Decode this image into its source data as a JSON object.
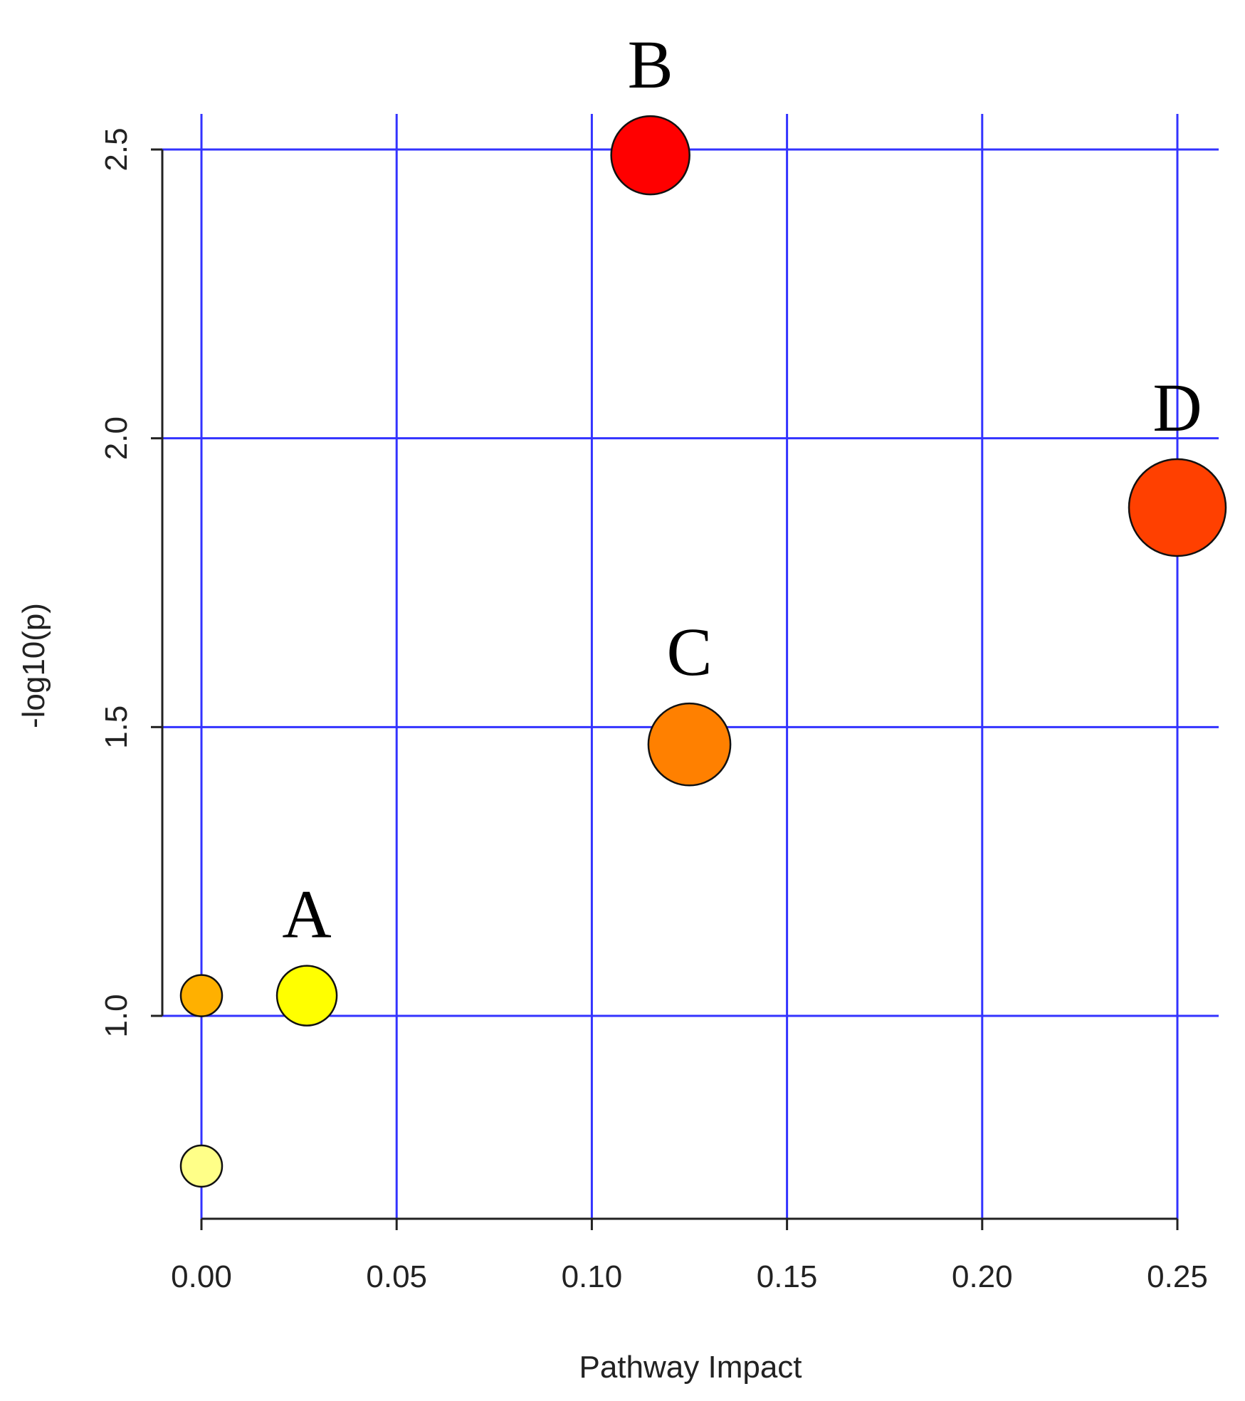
{
  "chart_data": {
    "type": "scatter",
    "title": "",
    "xlabel": "Pathway Impact",
    "ylabel": "-log10(p)",
    "xlim": [
      -0.01,
      0.26
    ],
    "ylim": [
      0.65,
      2.63
    ],
    "x_ticks": [
      0.0,
      0.05,
      0.1,
      0.15,
      0.2,
      0.25
    ],
    "x_tick_labels": [
      "0.00",
      "0.05",
      "0.10",
      "0.15",
      "0.20",
      "0.25"
    ],
    "y_ticks": [
      1.0,
      1.5,
      2.0,
      2.5
    ],
    "y_tick_labels": [
      "1.0",
      "1.5",
      "2.0",
      "2.5"
    ],
    "grid": true,
    "grid_color": "#3333ff",
    "points": [
      {
        "label": "",
        "x": 0.0,
        "y": 1.035,
        "color": "#ffb000",
        "size": 0.25
      },
      {
        "label": "A",
        "x": 0.027,
        "y": 1.035,
        "color": "#ffff00",
        "size": 0.5
      },
      {
        "label": "",
        "x": 0.0,
        "y": 0.74,
        "color": "#ffff88",
        "size": 0.25
      },
      {
        "label": "B",
        "x": 0.115,
        "y": 2.49,
        "color": "#ff0000",
        "size": 0.75
      },
      {
        "label": "C",
        "x": 0.125,
        "y": 1.47,
        "color": "#ff8000",
        "size": 0.8
      },
      {
        "label": "D",
        "x": 0.25,
        "y": 1.88,
        "color": "#ff4000",
        "size": 1.0
      }
    ]
  }
}
